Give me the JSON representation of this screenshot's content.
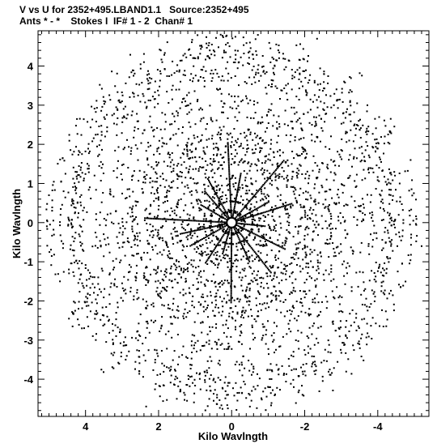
{
  "title_line1": "V vs U for 2352+495.LBAND1.1   Source:2352+495",
  "title_line2": "Ants * - *    Stokes I  IF# 1 - 2  Chan# 1",
  "chart_data": {
    "type": "scatter",
    "title": "V vs U for 2352+495.LBAND1.1   Source:2352+495",
    "subtitle": "Ants * - *    Stokes I  IF# 1 - 2  Chan# 1",
    "xlabel": "Kilo Wavlngth",
    "ylabel": "Kilo Wavlngth",
    "xlim": [
      5.3,
      -5.4
    ],
    "ylim": [
      -4.95,
      4.9
    ],
    "x_ticks": [
      4,
      2,
      0,
      -2,
      -4
    ],
    "x_tick_labels": [
      "4",
      "2",
      "0",
      "-2",
      "-4"
    ],
    "y_ticks": [
      4,
      3,
      2,
      1,
      0,
      -1,
      -2,
      -3,
      -4
    ],
    "y_tick_labels": [
      "4",
      "3",
      "2",
      "1",
      "0",
      "-1",
      "-2",
      "-3",
      "-4"
    ],
    "series": [
      {
        "marker": "dot",
        "color": "#000000",
        "pattern": "uv-coverage",
        "point_count_approx": 4200,
        "extent": {
          "u_max": 5.2,
          "v_max": 4.8
        },
        "points": [
          [
            0.3,
            4.8
          ],
          [
            0.6,
            4.4
          ],
          [
            -0.5,
            4.6
          ],
          [
            2.4,
            4.1
          ],
          [
            1.9,
            4.1
          ],
          [
            -1.3,
            4.2
          ],
          [
            -1.8,
            3.9
          ],
          [
            0.8,
            3.9
          ],
          [
            -0.2,
            4.1
          ],
          [
            1.4,
            3.6
          ],
          [
            4.6,
            0.8
          ],
          [
            4.7,
            -1.5
          ],
          [
            5.0,
            0.7
          ],
          [
            -4.9,
            1.6
          ],
          [
            -5.2,
            -0.6
          ],
          [
            -4.6,
            1.0
          ],
          [
            -4.5,
            -0.3
          ],
          [
            3.8,
            -2.9
          ],
          [
            2.9,
            -3.5
          ],
          [
            -2.0,
            -3.8
          ],
          [
            -1.7,
            -4.2
          ],
          [
            1.5,
            -4.5
          ],
          [
            1.4,
            -4.3
          ],
          [
            -0.5,
            -4.7
          ],
          [
            0.4,
            -4.4
          ],
          [
            -1.9,
            -3.7
          ],
          [
            3.0,
            3.1
          ],
          [
            -2.8,
            3.0
          ],
          [
            -3.7,
            2.4
          ],
          [
            4.1,
            -2.7
          ]
        ]
      }
    ],
    "grid": false
  }
}
